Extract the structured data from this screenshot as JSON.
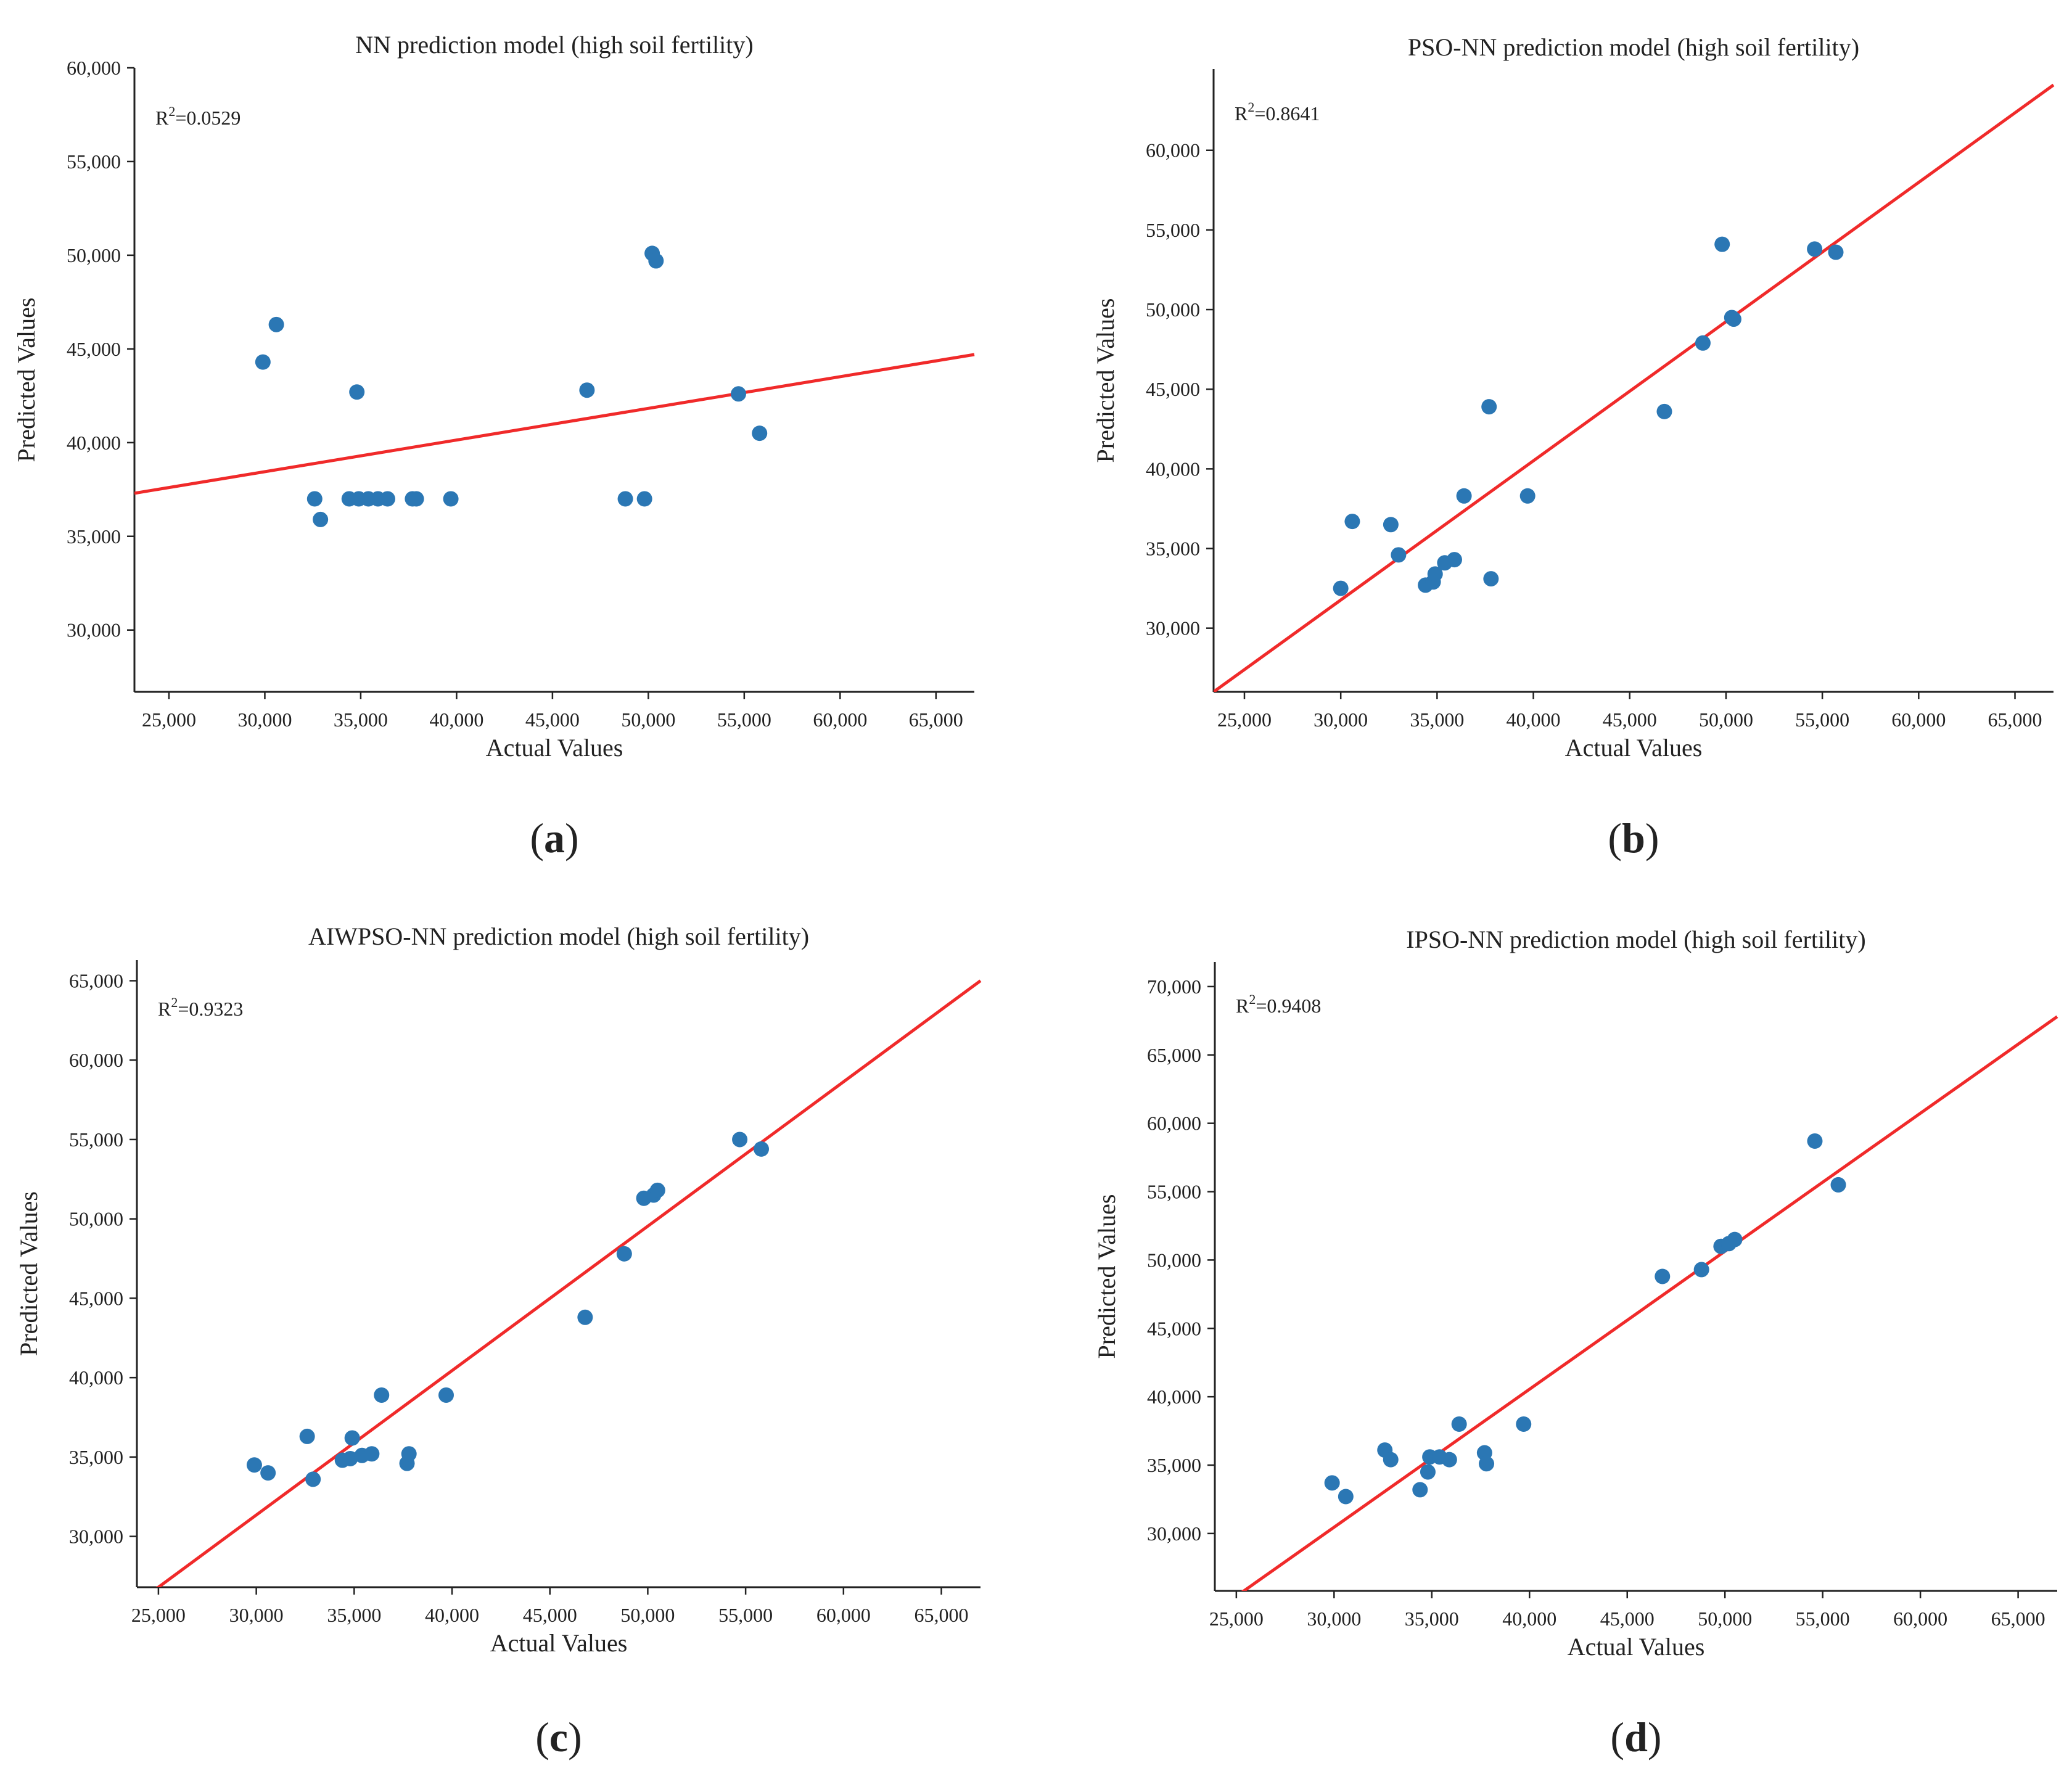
{
  "colors": {
    "point": "#2b77b4",
    "fit_line": "#f02a2a",
    "axis": "#222222"
  },
  "chart_data": [
    {
      "type": "scatter",
      "panel_label": "a",
      "title": "NN prediction model (high soil fertility)",
      "xlabel": "Actual Values",
      "ylabel": "Predicted Values",
      "r2_label": "R",
      "r2_sup": "2",
      "r2_value": "=0.0529",
      "xlim": [
        23200,
        67000
      ],
      "ylim": [
        26700,
        60000
      ],
      "xticks": [
        25000,
        30000,
        35000,
        40000,
        45000,
        50000,
        55000,
        60000,
        65000
      ],
      "xtick_labels": [
        "25,000",
        "30,000",
        "35,000",
        "40,000",
        "45,000",
        "50,000",
        "55,000",
        "60,000",
        "65,000"
      ],
      "yticks": [
        30000,
        35000,
        40000,
        45000,
        50000,
        55000,
        60000
      ],
      "ytick_labels": [
        "30,000",
        "35,000",
        "40,000",
        "45,000",
        "50,000",
        "55,000",
        "60,000"
      ],
      "fit_line": {
        "x": [
          23200,
          67000
        ],
        "y": [
          37300,
          44700
        ]
      },
      "points": [
        [
          29900,
          44300
        ],
        [
          30600,
          46300
        ],
        [
          32600,
          37000
        ],
        [
          32900,
          35900
        ],
        [
          34400,
          37000
        ],
        [
          34900,
          37000
        ],
        [
          34800,
          42700
        ],
        [
          35400,
          37000
        ],
        [
          35900,
          37000
        ],
        [
          36400,
          37000
        ],
        [
          37700,
          37000
        ],
        [
          37900,
          37000
        ],
        [
          39700,
          37000
        ],
        [
          46800,
          42800
        ],
        [
          48800,
          37000
        ],
        [
          49800,
          37000
        ],
        [
          50200,
          50100
        ],
        [
          50400,
          49700
        ],
        [
          54700,
          42600
        ],
        [
          55800,
          40500
        ]
      ]
    },
    {
      "type": "scatter",
      "panel_label": "b",
      "title": "PSO-NN prediction model (high soil fertility)",
      "xlabel": "Actual Values",
      "ylabel": "Predicted Values",
      "r2_label": "R",
      "r2_sup": "2",
      "r2_value": "=0.8641",
      "xlim": [
        23400,
        67000
      ],
      "ylim": [
        26000,
        65100
      ],
      "xticks": [
        25000,
        30000,
        35000,
        40000,
        45000,
        50000,
        55000,
        60000,
        65000
      ],
      "xtick_labels": [
        "25,000",
        "30,000",
        "35,000",
        "40,000",
        "45,000",
        "50,000",
        "55,000",
        "60,000",
        "65,000"
      ],
      "yticks": [
        30000,
        35000,
        40000,
        45000,
        50000,
        55000,
        60000
      ],
      "ytick_labels": [
        "30,000",
        "35,000",
        "40,000",
        "45,000",
        "50,000",
        "55,000",
        "60,000"
      ],
      "fit_line": {
        "x": [
          23400,
          67000
        ],
        "y": [
          26000,
          64100
        ]
      },
      "points": [
        [
          30000,
          32500
        ],
        [
          30600,
          36700
        ],
        [
          32600,
          36500
        ],
        [
          33000,
          34600
        ],
        [
          34400,
          32700
        ],
        [
          34800,
          32900
        ],
        [
          34900,
          33400
        ],
        [
          35400,
          34100
        ],
        [
          35900,
          34300
        ],
        [
          36400,
          38300
        ],
        [
          37700,
          43900
        ],
        [
          37800,
          33100
        ],
        [
          39700,
          38300
        ],
        [
          46800,
          43600
        ],
        [
          48800,
          47900
        ],
        [
          49800,
          54100
        ],
        [
          50300,
          49500
        ],
        [
          50400,
          49400
        ],
        [
          54600,
          53800
        ],
        [
          55700,
          53600
        ]
      ]
    },
    {
      "type": "scatter",
      "panel_label": "c",
      "title": "AIWPSO-NN prediction model (high soil fertility)",
      "xlabel": "Actual Values",
      "ylabel": "Predicted Values",
      "r2_label": "R",
      "r2_sup": "2",
      "r2_value": "=0.9323",
      "xlim": [
        23900,
        67000
      ],
      "ylim": [
        26800,
        66300
      ],
      "xticks": [
        25000,
        30000,
        35000,
        40000,
        45000,
        50000,
        55000,
        60000,
        65000
      ],
      "xtick_labels": [
        "25,000",
        "30,000",
        "35,000",
        "40,000",
        "45,000",
        "50,000",
        "55,000",
        "60,000",
        "65,000"
      ],
      "yticks": [
        30000,
        35000,
        40000,
        45000,
        50000,
        55000,
        60000,
        65000
      ],
      "ytick_labels": [
        "30,000",
        "35,000",
        "40,000",
        "45,000",
        "50,000",
        "55,000",
        "60,000",
        "65,000"
      ],
      "fit_line": {
        "x": [
          23900,
          67000
        ],
        "y": [
          25800,
          65000
        ]
      },
      "points": [
        [
          29900,
          34500
        ],
        [
          30600,
          34000
        ],
        [
          32600,
          36300
        ],
        [
          32900,
          33600
        ],
        [
          34400,
          34800
        ],
        [
          34800,
          34900
        ],
        [
          34900,
          36200
        ],
        [
          35400,
          35100
        ],
        [
          35900,
          35200
        ],
        [
          36400,
          38900
        ],
        [
          37700,
          34600
        ],
        [
          37800,
          35200
        ],
        [
          39700,
          38900
        ],
        [
          46800,
          43800
        ],
        [
          48800,
          47800
        ],
        [
          49800,
          51300
        ],
        [
          50300,
          51500
        ],
        [
          50500,
          51800
        ],
        [
          54700,
          55000
        ],
        [
          55800,
          54400
        ]
      ]
    },
    {
      "type": "scatter",
      "panel_label": "d",
      "title": "IPSO-NN prediction model (high soil fertility)",
      "xlabel": "Actual Values",
      "ylabel": "Predicted Values",
      "r2_label": "R",
      "r2_sup": "2",
      "r2_value": "=0.9408",
      "xlim": [
        23900,
        67000
      ],
      "ylim": [
        25800,
        71800
      ],
      "xticks": [
        25000,
        30000,
        35000,
        40000,
        45000,
        50000,
        55000,
        60000,
        65000
      ],
      "xtick_labels": [
        "25,000",
        "30,000",
        "35,000",
        "40,000",
        "45,000",
        "50,000",
        "55,000",
        "60,000",
        "65,000"
      ],
      "yticks": [
        30000,
        35000,
        40000,
        45000,
        50000,
        55000,
        60000,
        65000,
        70000
      ],
      "ytick_labels": [
        "30,000",
        "35,000",
        "40,000",
        "45,000",
        "50,000",
        "55,000",
        "60,000",
        "65,000",
        "70,000"
      ],
      "fit_line": {
        "x": [
          23900,
          67000
        ],
        "y": [
          24300,
          67800
        ]
      },
      "points": [
        [
          29900,
          33700
        ],
        [
          30600,
          32700
        ],
        [
          32600,
          36100
        ],
        [
          32900,
          35400
        ],
        [
          34400,
          33200
        ],
        [
          34800,
          34500
        ],
        [
          34900,
          35600
        ],
        [
          35400,
          35600
        ],
        [
          35900,
          35400
        ],
        [
          36400,
          38000
        ],
        [
          37700,
          35900
        ],
        [
          37800,
          35100
        ],
        [
          39700,
          38000
        ],
        [
          46800,
          48800
        ],
        [
          48800,
          49300
        ],
        [
          49800,
          51000
        ],
        [
          50200,
          51200
        ],
        [
          50500,
          51500
        ],
        [
          54600,
          58700
        ],
        [
          55800,
          55500
        ]
      ]
    }
  ]
}
